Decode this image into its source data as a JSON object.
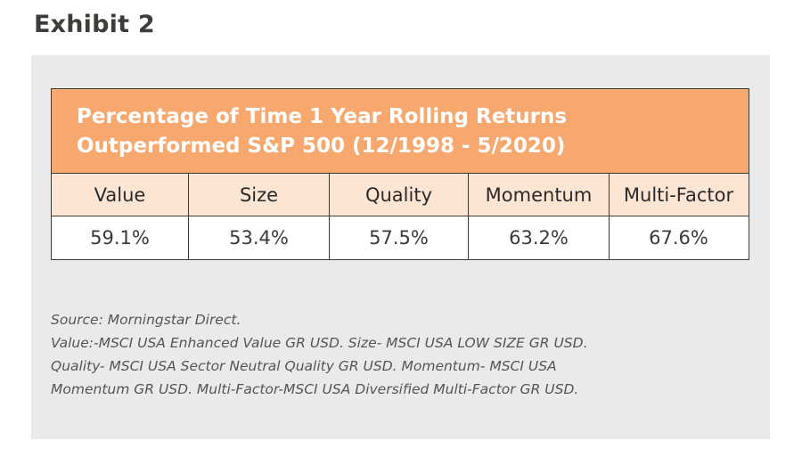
{
  "exhibit": "Exhibit 2",
  "chart_data": {
    "type": "table",
    "title_lines": [
      "Percentage of Time 1 Year Rolling Returns",
      "Outperformed S&P 500 (12/1998 - 5/2020)"
    ],
    "columns": [
      "Value",
      "Size",
      "Quality",
      "Momentum",
      "Multi-Factor"
    ],
    "rows": [
      [
        "59.1%",
        "53.4%",
        "57.5%",
        "63.2%",
        "67.6%"
      ]
    ],
    "values": [
      59.1,
      53.4,
      57.5,
      63.2,
      67.6
    ],
    "units": "%"
  },
  "source_lines": [
    "Source: Morningstar Direct.",
    "Value:-MSCI USA Enhanced Value GR USD. Size- MSCI USA LOW SIZE GR USD.",
    "Quality- MSCI USA Sector Neutral Quality GR USD. Momentum- MSCI USA",
    "Momentum GR USD. Multi-Factor-MSCI USA Diversified Multi-Factor GR USD."
  ],
  "colors": {
    "header_orange": "#f7a86f",
    "column_header_bg": "#fde5d3",
    "panel_gray": "#e9eae9",
    "border": "#3a3a3a"
  }
}
